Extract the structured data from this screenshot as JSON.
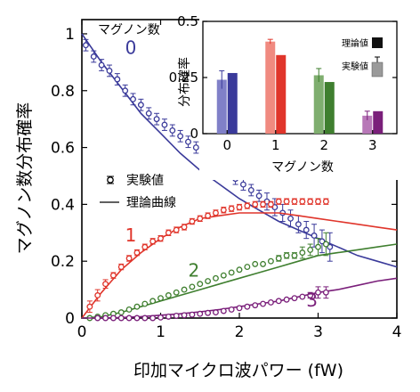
{
  "chart_data": [
    {
      "type": "scatter",
      "xlabel": "印加マイクロ波パワー (fW)",
      "ylabel": "マグノン数分布確率",
      "xlim": [
        0,
        4
      ],
      "ylim": [
        0,
        1.05
      ],
      "xticks": [
        "0",
        "1",
        "2",
        "3",
        "4"
      ],
      "yticks": [
        "0",
        "0.2",
        "0.4",
        "0.6",
        "0.8",
        "1"
      ],
      "legend_title": "マグノン数",
      "legend": {
        "experiment": "実験値",
        "theory": "理論曲線"
      },
      "colors": {
        "0": "#3a3a9a",
        "1": "#e0352b",
        "2": "#3f7f2f",
        "3": "#7a1f7a"
      },
      "series": [
        {
          "name": "0",
          "x": [
            0.05,
            0.15,
            0.25,
            0.35,
            0.45,
            0.55,
            0.65,
            0.75,
            0.85,
            0.95,
            1.05,
            1.15,
            1.25,
            1.35,
            1.45,
            1.55,
            1.65,
            1.75,
            1.85,
            1.95,
            2.05,
            2.15,
            2.25,
            2.35,
            2.45,
            2.55,
            2.65,
            2.75,
            2.85,
            2.95,
            3.05,
            3.15
          ],
          "y": [
            0.96,
            0.92,
            0.89,
            0.87,
            0.84,
            0.8,
            0.77,
            0.75,
            0.72,
            0.7,
            0.68,
            0.66,
            0.64,
            0.62,
            0.6,
            0.57,
            0.55,
            0.53,
            0.51,
            0.49,
            0.47,
            0.45,
            0.43,
            0.41,
            0.39,
            0.37,
            0.35,
            0.33,
            0.31,
            0.29,
            0.27,
            0.25
          ],
          "err": [
            0.02,
            0.02,
            0.02,
            0.02,
            0.02,
            0.02,
            0.02,
            0.02,
            0.02,
            0.02,
            0.02,
            0.02,
            0.02,
            0.02,
            0.02,
            0.02,
            0.02,
            0.02,
            0.02,
            0.02,
            0.02,
            0.02,
            0.02,
            0.03,
            0.03,
            0.03,
            0.03,
            0.03,
            0.03,
            0.04,
            0.04,
            0.05
          ],
          "theory_x": [
            0,
            0.25,
            0.5,
            0.75,
            1,
            1.25,
            1.5,
            1.75,
            2,
            2.25,
            2.5,
            2.75,
            3,
            3.25,
            3.5,
            3.75,
            4
          ],
          "theory_y": [
            1.0,
            0.9,
            0.81,
            0.72,
            0.65,
            0.58,
            0.52,
            0.47,
            0.42,
            0.38,
            0.34,
            0.31,
            0.28,
            0.25,
            0.22,
            0.2,
            0.18
          ]
        },
        {
          "name": "1",
          "x": [
            0.1,
            0.2,
            0.3,
            0.4,
            0.5,
            0.6,
            0.7,
            0.8,
            0.9,
            1.0,
            1.1,
            1.2,
            1.3,
            1.4,
            1.5,
            1.6,
            1.7,
            1.8,
            1.9,
            2.0,
            2.1,
            2.2,
            2.3,
            2.4,
            2.5,
            2.6,
            2.7,
            2.8,
            2.9,
            3.0,
            3.1
          ],
          "y": [
            0.04,
            0.08,
            0.12,
            0.15,
            0.18,
            0.21,
            0.23,
            0.25,
            0.27,
            0.28,
            0.3,
            0.31,
            0.32,
            0.34,
            0.35,
            0.36,
            0.37,
            0.38,
            0.385,
            0.39,
            0.395,
            0.4,
            0.4,
            0.4,
            0.41,
            0.41,
            0.41,
            0.41,
            0.41,
            0.41,
            0.41
          ],
          "err": [
            0.02,
            0.02,
            0.015,
            0.01,
            0.01,
            0.01,
            0.01,
            0.01,
            0.01,
            0.01,
            0.01,
            0.01,
            0.01,
            0.01,
            0.01,
            0.01,
            0.01,
            0.01,
            0.01,
            0.01,
            0.01,
            0.01,
            0.01,
            0.01,
            0.01,
            0.01,
            0.01,
            0.01,
            0.01,
            0.01,
            0.01
          ],
          "theory_x": [
            0,
            0.25,
            0.5,
            0.75,
            1,
            1.25,
            1.5,
            1.75,
            2,
            2.25,
            2.5,
            2.75,
            3,
            3.25,
            3.5,
            3.75,
            4
          ],
          "theory_y": [
            0,
            0.09,
            0.17,
            0.23,
            0.28,
            0.32,
            0.35,
            0.36,
            0.37,
            0.37,
            0.37,
            0.36,
            0.35,
            0.34,
            0.33,
            0.32,
            0.31
          ]
        },
        {
          "name": "2",
          "x": [
            0.1,
            0.2,
            0.3,
            0.4,
            0.5,
            0.6,
            0.7,
            0.8,
            0.9,
            1.0,
            1.1,
            1.2,
            1.3,
            1.4,
            1.5,
            1.6,
            1.7,
            1.8,
            1.9,
            2.0,
            2.1,
            2.2,
            2.3,
            2.4,
            2.5,
            2.6,
            2.7,
            2.8,
            2.9,
            3.0,
            3.1
          ],
          "y": [
            0.0,
            0.005,
            0.01,
            0.015,
            0.02,
            0.03,
            0.04,
            0.05,
            0.06,
            0.07,
            0.08,
            0.09,
            0.1,
            0.11,
            0.12,
            0.13,
            0.14,
            0.15,
            0.16,
            0.17,
            0.18,
            0.19,
            0.19,
            0.2,
            0.21,
            0.22,
            0.22,
            0.23,
            0.24,
            0.25,
            0.26
          ],
          "err": [
            0,
            0,
            0,
            0,
            0,
            0,
            0,
            0,
            0,
            0,
            0,
            0,
            0,
            0,
            0,
            0,
            0,
            0,
            0,
            0,
            0,
            0,
            0,
            0,
            0.01,
            0.01,
            0.01,
            0.02,
            0.02,
            0.03,
            0.04
          ],
          "theory_x": [
            0,
            0.25,
            0.5,
            0.75,
            1,
            1.25,
            1.5,
            1.75,
            2,
            2.25,
            2.5,
            2.75,
            3,
            3.25,
            3.5,
            3.75,
            4
          ],
          "theory_y": [
            0,
            0.005,
            0.02,
            0.04,
            0.06,
            0.08,
            0.1,
            0.12,
            0.14,
            0.16,
            0.18,
            0.2,
            0.22,
            0.23,
            0.24,
            0.25,
            0.26
          ]
        },
        {
          "name": "3",
          "x": [
            0.2,
            0.3,
            0.4,
            0.5,
            0.6,
            0.7,
            0.8,
            0.9,
            1.0,
            1.1,
            1.2,
            1.3,
            1.4,
            1.5,
            1.6,
            1.7,
            1.8,
            1.9,
            2.0,
            2.1,
            2.2,
            2.3,
            2.4,
            2.5,
            2.6,
            2.7,
            2.8,
            2.9,
            3.0,
            3.1
          ],
          "y": [
            0,
            0,
            0,
            0,
            0,
            0,
            0,
            0,
            0.002,
            0.005,
            0.008,
            0.01,
            0.012,
            0.015,
            0.018,
            0.02,
            0.025,
            0.03,
            0.035,
            0.04,
            0.045,
            0.05,
            0.055,
            0.06,
            0.065,
            0.07,
            0.075,
            0.08,
            0.09,
            0.09
          ],
          "err": [
            0,
            0,
            0,
            0,
            0,
            0,
            0,
            0,
            0,
            0,
            0,
            0,
            0,
            0,
            0,
            0,
            0,
            0,
            0,
            0,
            0,
            0,
            0,
            0,
            0,
            0,
            0,
            0.01,
            0.02,
            0.02
          ],
          "theory_x": [
            0,
            0.25,
            0.5,
            0.75,
            1,
            1.25,
            1.5,
            1.75,
            2,
            2.25,
            2.5,
            2.75,
            3,
            3.25,
            3.5,
            3.75,
            4
          ],
          "theory_y": [
            0,
            0,
            0.002,
            0.005,
            0.01,
            0.015,
            0.022,
            0.03,
            0.04,
            0.05,
            0.06,
            0.075,
            0.09,
            0.1,
            0.115,
            0.13,
            0.14
          ]
        }
      ]
    },
    {
      "type": "bar",
      "xlabel": "マグノン数",
      "ylabel": "分布確率",
      "ylim": [
        0,
        0.5
      ],
      "yticks": [
        "0",
        "0.25",
        "0.5"
      ],
      "categories": [
        "0",
        "1",
        "2",
        "3"
      ],
      "legend": {
        "theory": "理論値",
        "experiment": "実験値"
      },
      "series": [
        {
          "name": "実験値",
          "values": [
            0.24,
            0.41,
            0.26,
            0.08
          ],
          "err": [
            0.04,
            0.01,
            0.03,
            0.02
          ]
        },
        {
          "name": "理論値",
          "values": [
            0.27,
            0.35,
            0.23,
            0.1
          ]
        }
      ],
      "colors": {
        "experiment": [
          "#8080c8",
          "#f08a80",
          "#7fae6f",
          "#b878b8"
        ],
        "theory": [
          "#3a3a9a",
          "#e0352b",
          "#3f7f2f",
          "#7a1f7a"
        ]
      }
    }
  ]
}
